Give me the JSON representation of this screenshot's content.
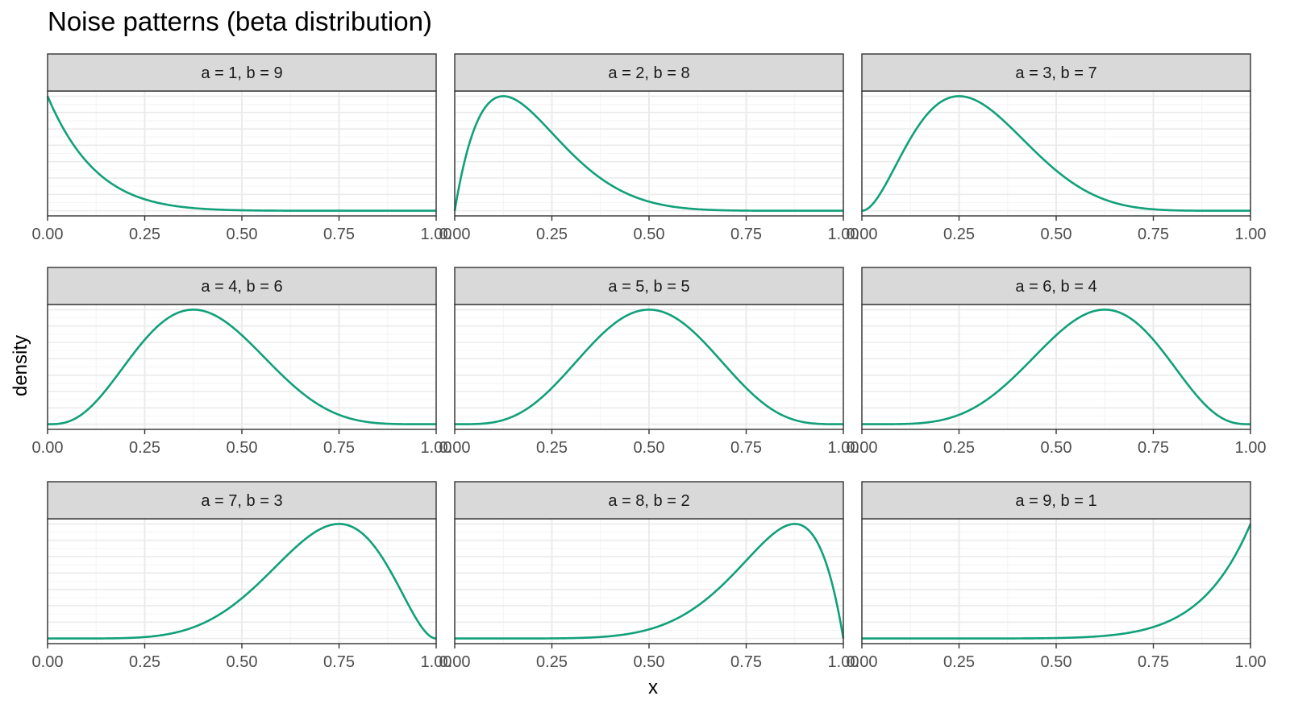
{
  "title": "Noise patterns (beta distribution)",
  "xlabel": "x",
  "ylabel": "density",
  "colors": {
    "line": "#11a07a",
    "strip_fill": "#d9d9d9",
    "strip_border": "#333333",
    "grid_major": "#ebebeb",
    "grid_minor": "#f5f5f5",
    "panel_border": "#333333",
    "tick_text": "#4d4d4d"
  },
  "chart_data": {
    "type": "line",
    "facet_layout": "3x3",
    "shared_x_ticks": [
      "0.00",
      "0.25",
      "0.50",
      "0.75",
      "1.00"
    ],
    "xlim": [
      0,
      1
    ],
    "y_axis": "free, no tick labels shown",
    "grid": true,
    "panels": [
      {
        "label": "a = 1, b = 9",
        "a": 1,
        "b": 9
      },
      {
        "label": "a = 2, b = 8",
        "a": 2,
        "b": 8
      },
      {
        "label": "a = 3, b = 7",
        "a": 3,
        "b": 7
      },
      {
        "label": "a = 4, b = 6",
        "a": 4,
        "b": 6
      },
      {
        "label": "a = 5, b = 5",
        "a": 5,
        "b": 5
      },
      {
        "label": "a = 6, b = 4",
        "a": 6,
        "b": 4
      },
      {
        "label": "a = 7, b = 3",
        "a": 7,
        "b": 3
      },
      {
        "label": "a = 8, b = 2",
        "a": 8,
        "b": 2
      },
      {
        "label": "a = 9, b = 1",
        "a": 9,
        "b": 1
      }
    ]
  }
}
